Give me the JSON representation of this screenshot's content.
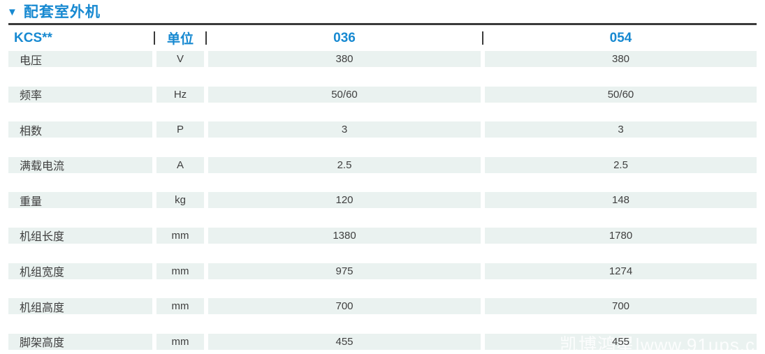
{
  "section": {
    "marker": "▼",
    "title": "配套室外机"
  },
  "table": {
    "header": {
      "model_label": "KCS**",
      "unit_label": "单位",
      "col_036": "036",
      "col_054": "054"
    },
    "rows": [
      {
        "label": "电压",
        "unit": "V",
        "v036": "380",
        "v054": "380"
      },
      {
        "label": "频率",
        "unit": "Hz",
        "v036": "50/60",
        "v054": "50/60"
      },
      {
        "label": "相数",
        "unit": "P",
        "v036": "3",
        "v054": "3"
      },
      {
        "label": "满载电流",
        "unit": "A",
        "v036": "2.5",
        "v054": "2.5"
      },
      {
        "label": "重量",
        "unit": "kg",
        "v036": "120",
        "v054": "148"
      },
      {
        "label": "机组长度",
        "unit": "mm",
        "v036": "1380",
        "v054": "1780"
      },
      {
        "label": "机组宽度",
        "unit": "mm",
        "v036": "975",
        "v054": "1274"
      },
      {
        "label": "机组高度",
        "unit": "mm",
        "v036": "700",
        "v054": "700"
      },
      {
        "label": "脚架高度",
        "unit": "mm",
        "v036": "455",
        "v054": "455"
      }
    ]
  },
  "watermark": {
    "text": "凯博鸿星|www.91ups.c"
  },
  "colors": {
    "accent_blue": "#1789d1",
    "row_band": "#eaf2f0",
    "top_rule": "#3b3b3b",
    "body_text": "#3f3f3f",
    "watermark": "#ffffff"
  }
}
